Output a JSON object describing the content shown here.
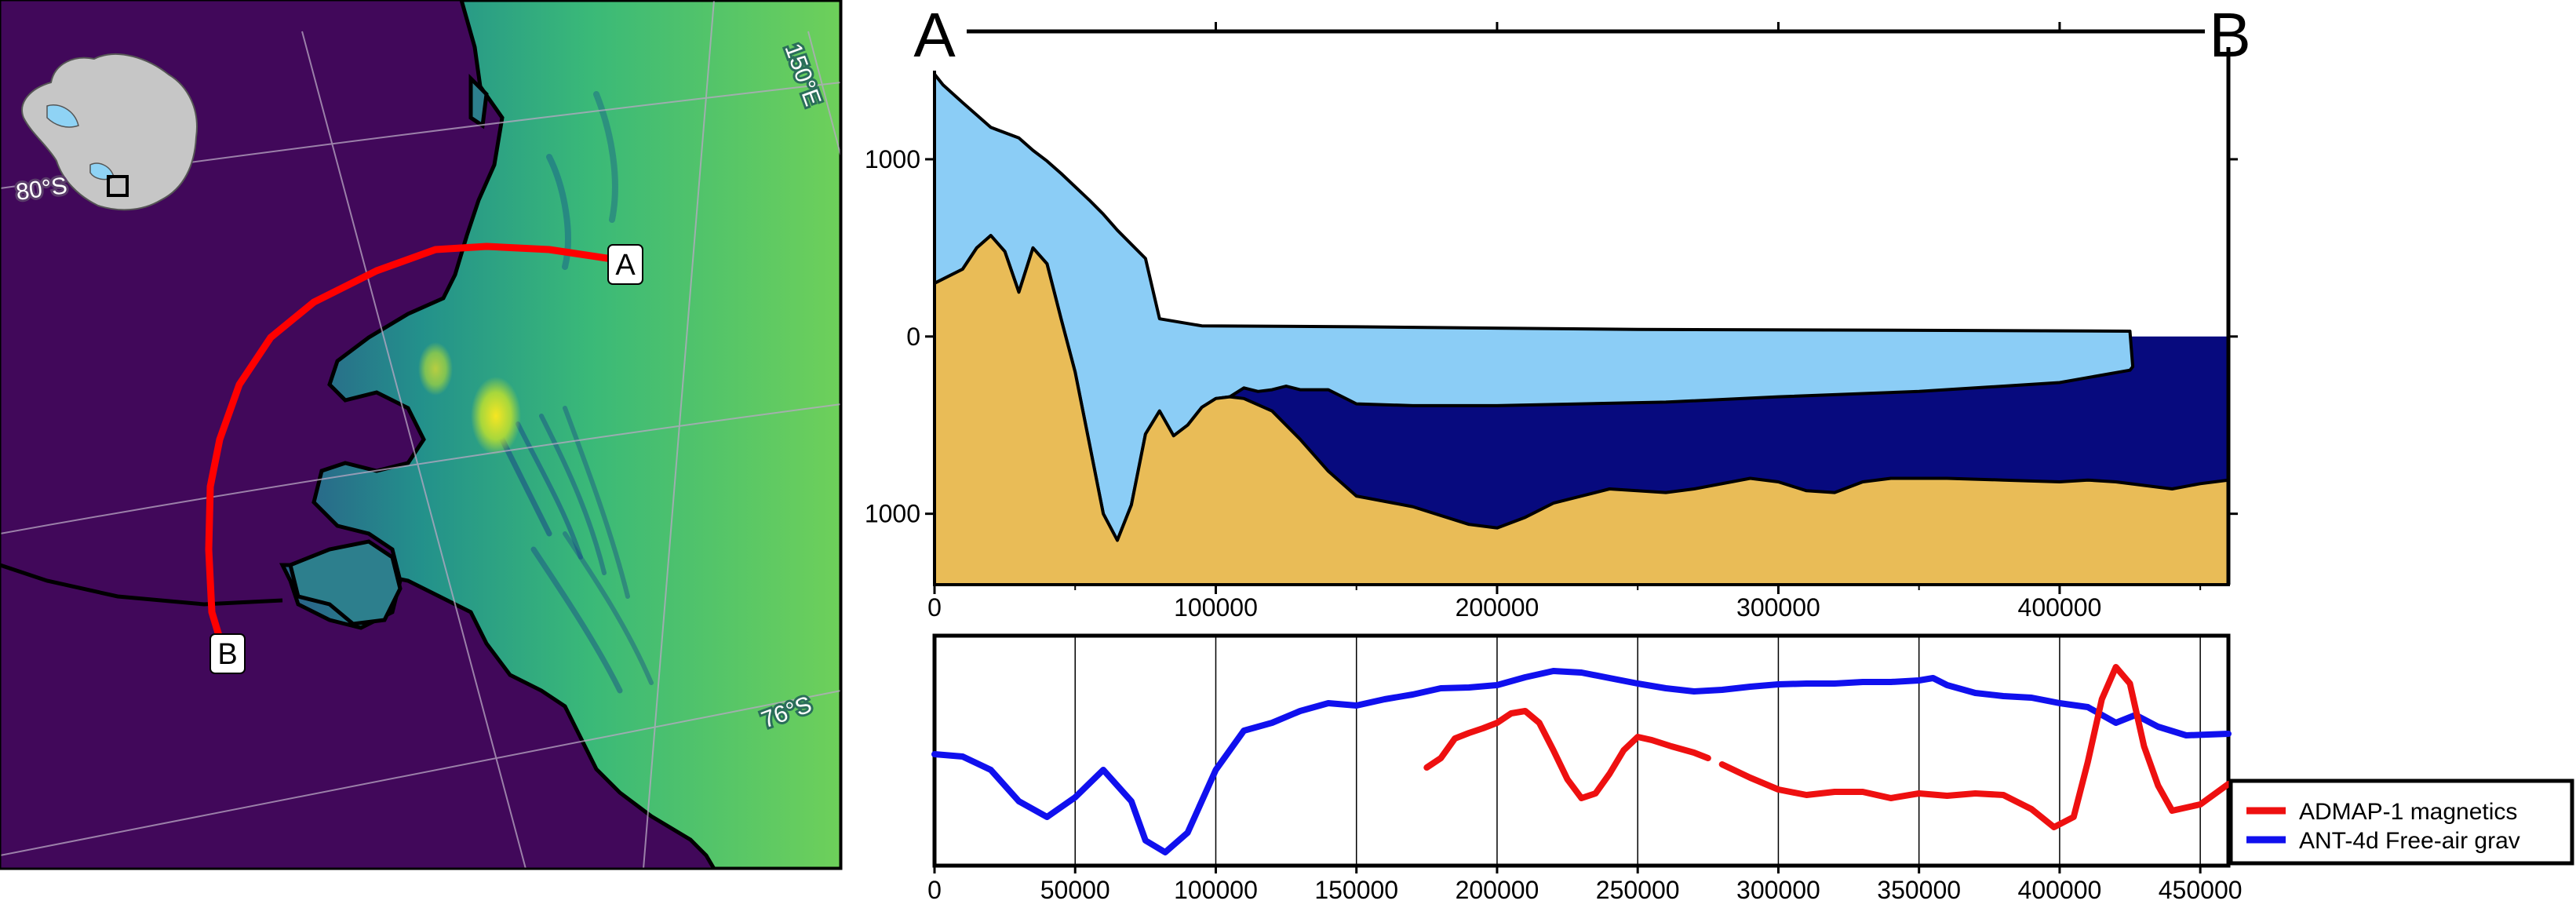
{
  "map": {
    "graticule_labels": {
      "lon_150e": "150°E",
      "lat_76s": "76°S",
      "lat_80s": "80°S"
    },
    "markers": {
      "a": "A",
      "b": "B"
    },
    "colors": {
      "line": "#ff0000",
      "ocean": "#41085a",
      "coast": "#000000",
      "ice_shelf": "#8fd3f5",
      "land": "#c8c8c8"
    }
  },
  "profile": {
    "end_labels": {
      "left": "A",
      "right": "B"
    },
    "chart_data": {
      "type": "area",
      "xlim": [
        0,
        460000
      ],
      "ylim": [
        -1400,
        1500
      ],
      "x_ticks": [
        0,
        100000,
        200000,
        300000,
        400000
      ],
      "y_ticks": [
        -1000,
        0,
        1000
      ],
      "y_tick_labels": [
        "1000",
        "0",
        "1000"
      ],
      "surface": [
        [
          0,
          1480
        ],
        [
          3000,
          1420
        ],
        [
          10000,
          1320
        ],
        [
          20000,
          1180
        ],
        [
          30000,
          1120
        ],
        [
          35000,
          1050
        ],
        [
          40000,
          990
        ],
        [
          45000,
          920
        ],
        [
          55000,
          770
        ],
        [
          60000,
          690
        ],
        [
          65000,
          600
        ],
        [
          70000,
          520
        ],
        [
          75000,
          440
        ],
        [
          80000,
          100
        ],
        [
          95000,
          60
        ],
        [
          150000,
          55
        ],
        [
          250000,
          40
        ],
        [
          350000,
          35
        ],
        [
          425000,
          30
        ],
        [
          426000,
          -170
        ]
      ],
      "ice_base": [
        [
          0,
          300
        ],
        [
          10000,
          380
        ],
        [
          15000,
          500
        ],
        [
          20000,
          570
        ],
        [
          25000,
          480
        ],
        [
          30000,
          250
        ],
        [
          35000,
          500
        ],
        [
          40000,
          410
        ],
        [
          45000,
          100
        ],
        [
          50000,
          -200
        ],
        [
          55000,
          -600
        ],
        [
          60000,
          -1000
        ],
        [
          65000,
          -1150
        ],
        [
          70000,
          -950
        ],
        [
          75000,
          -550
        ],
        [
          80000,
          -420
        ],
        [
          85000,
          -560
        ],
        [
          90000,
          -500
        ],
        [
          95000,
          -400
        ],
        [
          100000,
          -350
        ],
        [
          105000,
          -340
        ],
        [
          110000,
          -290
        ],
        [
          115000,
          -310
        ],
        [
          120000,
          -300
        ],
        [
          125000,
          -280
        ],
        [
          130000,
          -300
        ],
        [
          140000,
          -300
        ],
        [
          150000,
          -380
        ],
        [
          170000,
          -390
        ],
        [
          200000,
          -390
        ],
        [
          230000,
          -380
        ],
        [
          260000,
          -370
        ],
        [
          300000,
          -340
        ],
        [
          350000,
          -310
        ],
        [
          400000,
          -260
        ],
        [
          425000,
          -190
        ]
      ],
      "bed": [
        [
          0,
          300
        ],
        [
          10000,
          380
        ],
        [
          15000,
          500
        ],
        [
          20000,
          570
        ],
        [
          25000,
          480
        ],
        [
          30000,
          250
        ],
        [
          35000,
          500
        ],
        [
          40000,
          410
        ],
        [
          45000,
          100
        ],
        [
          50000,
          -200
        ],
        [
          55000,
          -600
        ],
        [
          60000,
          -1000
        ],
        [
          65000,
          -1150
        ],
        [
          70000,
          -950
        ],
        [
          75000,
          -550
        ],
        [
          80000,
          -420
        ],
        [
          85000,
          -560
        ],
        [
          90000,
          -500
        ],
        [
          95000,
          -400
        ],
        [
          100000,
          -350
        ],
        [
          105000,
          -340
        ],
        [
          110000,
          -350
        ],
        [
          120000,
          -420
        ],
        [
          130000,
          -580
        ],
        [
          140000,
          -760
        ],
        [
          150000,
          -900
        ],
        [
          170000,
          -960
        ],
        [
          190000,
          -1060
        ],
        [
          200000,
          -1080
        ],
        [
          210000,
          -1020
        ],
        [
          220000,
          -940
        ],
        [
          240000,
          -860
        ],
        [
          260000,
          -880
        ],
        [
          270000,
          -860
        ],
        [
          290000,
          -800
        ],
        [
          300000,
          -820
        ],
        [
          310000,
          -870
        ],
        [
          320000,
          -880
        ],
        [
          330000,
          -820
        ],
        [
          340000,
          -800
        ],
        [
          360000,
          -800
        ],
        [
          380000,
          -810
        ],
        [
          400000,
          -820
        ],
        [
          410000,
          -810
        ],
        [
          420000,
          -820
        ],
        [
          440000,
          -860
        ],
        [
          450000,
          -830
        ],
        [
          460000,
          -810
        ]
      ],
      "colors": {
        "ice": "#8bcdf6",
        "water": "#070a7e",
        "rock": "#e9bc57"
      }
    }
  },
  "anomaly": {
    "legend": {
      "magnetics": "ADMAP-1 magnetics",
      "gravity": "ANT-4d Free-air grav"
    },
    "chart_data": {
      "type": "line",
      "xlim": [
        0,
        460000
      ],
      "x_ticks": [
        0,
        50000,
        100000,
        150000,
        200000,
        250000,
        300000,
        350000,
        400000,
        450000
      ],
      "series": [
        {
          "name": "ANT-4d Free-air grav",
          "color": "#1010ee",
          "points": [
            [
              0,
              140
            ],
            [
              10000,
              137
            ],
            [
              20000,
              120
            ],
            [
              30000,
              80
            ],
            [
              40000,
              60
            ],
            [
              50000,
              85
            ],
            [
              60000,
              120
            ],
            [
              70000,
              80
            ],
            [
              75000,
              30
            ],
            [
              82000,
              15
            ],
            [
              90000,
              40
            ],
            [
              100000,
              120
            ],
            [
              110000,
              170
            ],
            [
              120000,
              180
            ],
            [
              130000,
              195
            ],
            [
              140000,
              205
            ],
            [
              150000,
              202
            ],
            [
              160000,
              210
            ],
            [
              170000,
              216
            ],
            [
              180000,
              224
            ],
            [
              190000,
              225
            ],
            [
              200000,
              228
            ],
            [
              210000,
              238
            ],
            [
              220000,
              246
            ],
            [
              230000,
              244
            ],
            [
              240000,
              237
            ],
            [
              250000,
              230
            ],
            [
              260000,
              224
            ],
            [
              270000,
              220
            ],
            [
              280000,
              222
            ],
            [
              290000,
              226
            ],
            [
              300000,
              229
            ],
            [
              310000,
              230
            ],
            [
              320000,
              230
            ],
            [
              330000,
              232
            ],
            [
              340000,
              232
            ],
            [
              350000,
              234
            ],
            [
              355000,
              237
            ],
            [
              360000,
              228
            ],
            [
              370000,
              218
            ],
            [
              380000,
              214
            ],
            [
              390000,
              212
            ],
            [
              400000,
              205
            ],
            [
              410000,
              200
            ],
            [
              420000,
              180
            ],
            [
              427000,
              190
            ],
            [
              435000,
              175
            ],
            [
              445000,
              164
            ],
            [
              460000,
              166
            ]
          ]
        },
        {
          "name": "ADMAP-1 magnetics",
          "color": "#ee1010",
          "segments": [
            [
              [
                175000,
                123
              ],
              [
                180000,
                135
              ],
              [
                185000,
                160
              ],
              [
                190000,
                167
              ],
              [
                195000,
                173
              ],
              [
                200000,
                180
              ],
              [
                205000,
                192
              ],
              [
                210000,
                195
              ],
              [
                215000,
                180
              ],
              [
                220000,
                145
              ],
              [
                225000,
                108
              ],
              [
                230000,
                84
              ],
              [
                235000,
                90
              ],
              [
                240000,
                115
              ],
              [
                245000,
                145
              ],
              [
                250000,
                162
              ],
              [
                255000,
                158
              ],
              [
                262000,
                150
              ],
              [
                270000,
                142
              ],
              [
                275000,
                135
              ]
            ],
            [
              [
                280000,
                127
              ],
              [
                290000,
                110
              ],
              [
                300000,
                95
              ],
              [
                310000,
                88
              ],
              [
                320000,
                92
              ],
              [
                330000,
                92
              ],
              [
                340000,
                84
              ],
              [
                350000,
                90
              ],
              [
                360000,
                87
              ],
              [
                370000,
                90
              ],
              [
                380000,
                88
              ],
              [
                390000,
                70
              ],
              [
                398000,
                47
              ],
              [
                405000,
                60
              ],
              [
                410000,
                130
              ],
              [
                415000,
                210
              ],
              [
                420000,
                251
              ],
              [
                425000,
                230
              ],
              [
                430000,
                150
              ],
              [
                435000,
                100
              ],
              [
                440000,
                68
              ],
              [
                450000,
                76
              ],
              [
                460000,
                102
              ]
            ]
          ]
        }
      ]
    }
  }
}
